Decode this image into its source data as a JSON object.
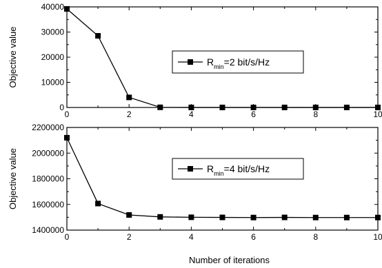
{
  "chart_data": [
    {
      "type": "line",
      "title": "",
      "xlabel": "",
      "ylabel": "Objective value",
      "xlim": [
        0,
        10
      ],
      "ylim": [
        0,
        40000
      ],
      "x_ticks": [
        0,
        2,
        4,
        6,
        8,
        10
      ],
      "x_tick_labels": [
        "0",
        "2",
        "4",
        "6",
        "8",
        "10"
      ],
      "y_ticks": [
        0,
        10000,
        20000,
        30000,
        40000
      ],
      "y_tick_labels": [
        "0",
        "10000",
        "20000",
        "30000",
        "40000"
      ],
      "x": [
        0,
        1,
        2,
        3,
        4,
        5,
        6,
        7,
        8,
        9,
        10
      ],
      "series": [
        {
          "legend_main": "R",
          "legend_sub": "min",
          "legend_rest": "=2 bit/s/Hz",
          "marker": "square",
          "color": "#000000",
          "values": [
            39200,
            28500,
            4000,
            60,
            20,
            20,
            20,
            20,
            20,
            20,
            20
          ]
        }
      ],
      "legend_position": "center-right",
      "grid": false
    },
    {
      "type": "line",
      "title": "",
      "xlabel": "Number of iterations",
      "ylabel": "Objective value",
      "xlim": [
        0,
        10
      ],
      "ylim": [
        1400000,
        2200000
      ],
      "x_ticks": [
        0,
        2,
        4,
        6,
        8,
        10
      ],
      "x_tick_labels": [
        "0",
        "2",
        "4",
        "6",
        "8",
        "10"
      ],
      "y_ticks": [
        1400000,
        1600000,
        1800000,
        2000000,
        2200000
      ],
      "y_tick_labels": [
        "1400000",
        "1600000",
        "1800000",
        "2000000",
        "2200000"
      ],
      "x": [
        0,
        1,
        2,
        3,
        4,
        5,
        6,
        7,
        8,
        9,
        10
      ],
      "series": [
        {
          "legend_main": "R",
          "legend_sub": "min",
          "legend_rest": "=4 bit/s/Hz",
          "marker": "square",
          "color": "#000000",
          "values": [
            2120000,
            1607000,
            1518000,
            1503000,
            1500000,
            1499000,
            1498000,
            1499000,
            1498000,
            1498000,
            1498000
          ]
        }
      ],
      "legend_position": "center-right",
      "grid": false
    }
  ]
}
